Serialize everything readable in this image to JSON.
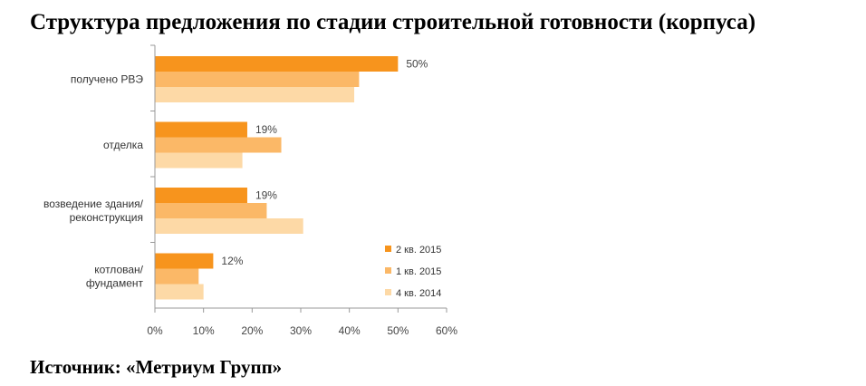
{
  "title": "Структура предложения по стадии строительной готовности (корпуса)",
  "source": "Источник: «Метриум Групп»",
  "chart_data": {
    "type": "bar",
    "orientation": "horizontal",
    "categories": [
      [
        "получено РВЭ"
      ],
      [
        "отделка"
      ],
      [
        "возведение здания/",
        "реконструкция"
      ],
      [
        "котлован/",
        "фундамент"
      ]
    ],
    "series": [
      {
        "name": "2 кв. 2015",
        "color": "#f7941d",
        "values": [
          50,
          19,
          19,
          12
        ]
      },
      {
        "name": "1 кв. 2015",
        "color": "#fbb867",
        "values": [
          42,
          26,
          23,
          9
        ]
      },
      {
        "name": "4 кв. 2014",
        "color": "#fdd9a6",
        "values": [
          41,
          18,
          30.5,
          10
        ]
      }
    ],
    "data_labels": [
      "50%",
      "19%",
      "19%",
      "12%"
    ],
    "xlim": [
      0,
      60
    ],
    "xticks": [
      0,
      10,
      20,
      30,
      40,
      50,
      60
    ],
    "xtick_labels": [
      "0%",
      "10%",
      "20%",
      "30%",
      "40%",
      "50%",
      "60%"
    ],
    "grid": false,
    "legend_position": "bottom-right"
  }
}
